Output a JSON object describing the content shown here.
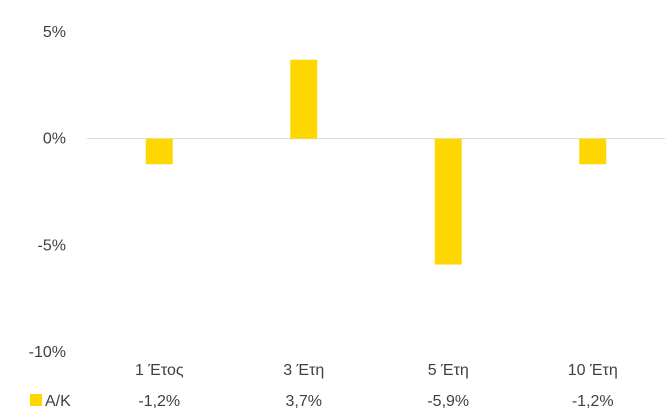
{
  "chart_data": {
    "type": "bar",
    "title": "",
    "xlabel": "",
    "ylabel": "",
    "categories": [
      "1 Έτος",
      "3 Έτη",
      "5 Έτη",
      "10 Έτη"
    ],
    "series": [
      {
        "name": "Α/Κ",
        "values": [
          -1.2,
          3.7,
          -5.9,
          -1.2
        ],
        "value_labels": [
          "-1,2%",
          "3,7%",
          "-5,9%",
          "-1,2%"
        ],
        "color": "#FFD700"
      }
    ],
    "ylim": [
      -10,
      5
    ],
    "yticks": [
      5,
      0,
      -5,
      -10
    ],
    "ytick_labels": [
      "5%",
      "0%",
      "-5%",
      "-10%"
    ],
    "grid": false,
    "legend": "bottom-left, as data table row"
  },
  "colors": {
    "bar": "#FFD700",
    "axis_line": "#d9d9d9",
    "text": "#404040"
  }
}
